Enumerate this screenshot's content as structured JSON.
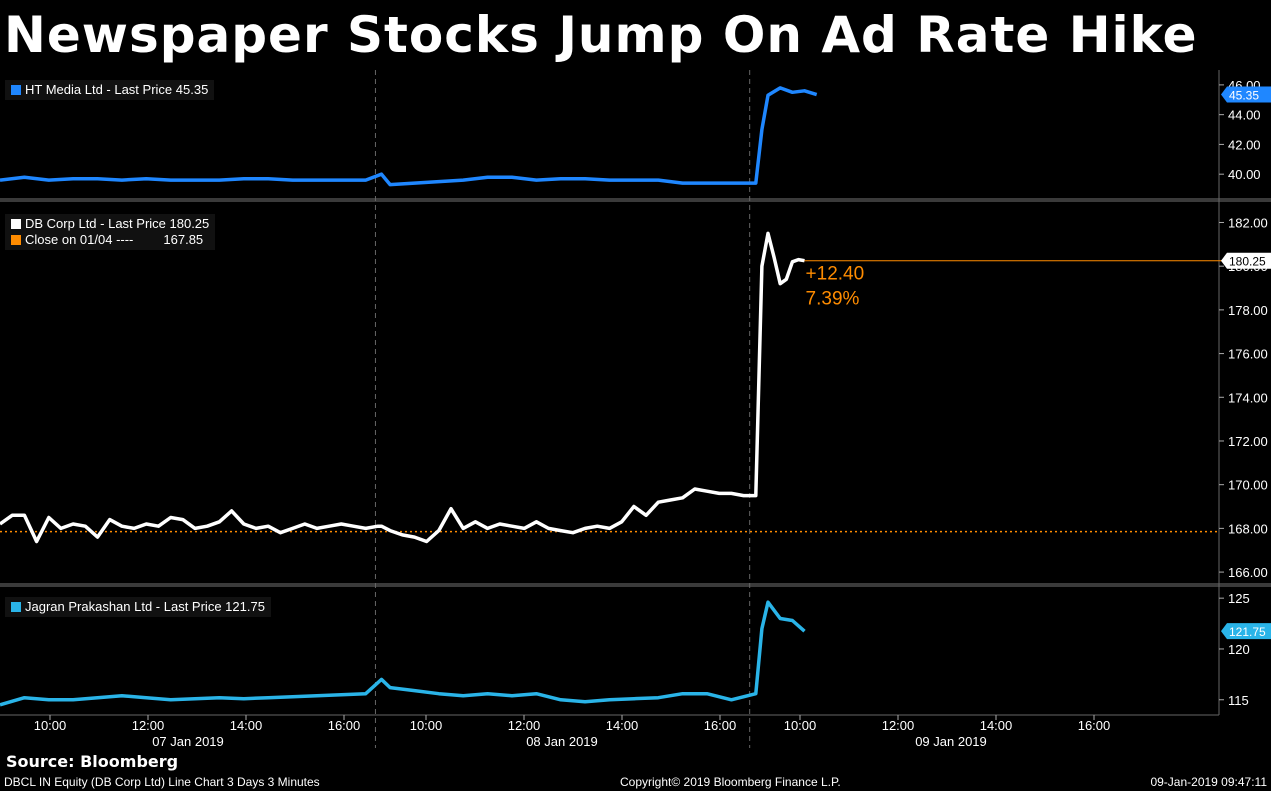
{
  "title": "Newspaper Stocks Jump On Ad Rate Hike",
  "source": "Source: Bloomberg",
  "footer": {
    "left": "DBCL IN Equity (DB Corp Ltd) Line Chart 3 Days 3 Minutes",
    "center": "Copyright© 2019 Bloomberg Finance L.P.",
    "right": "09-Jan-2019 09:47:11"
  },
  "colors": {
    "ht": "#1f87ff",
    "db": "#ffffff",
    "jagran": "#2ab4e8",
    "close": "#ff8c00",
    "grid": "#555555"
  },
  "chart_data": [
    {
      "type": "line",
      "name": "HT Media Ltd - Last Price",
      "legend": "HT Media Ltd - Last Price 45.35",
      "last_price": "45.35",
      "y_ticks": [
        "40.00",
        "42.00",
        "44.00",
        "46.00"
      ],
      "ylim": [
        38.4,
        47.0
      ],
      "x": [
        0,
        2,
        4,
        6,
        8,
        10,
        12,
        14,
        16,
        18,
        20,
        22,
        24,
        26,
        28,
        30,
        31.3,
        32,
        34,
        36,
        38,
        40,
        42,
        44,
        46,
        48,
        50,
        52,
        54,
        56,
        58,
        60,
        62,
        62.5,
        63,
        64,
        65,
        66,
        67
      ],
      "values": [
        39.6,
        39.8,
        39.6,
        39.7,
        39.7,
        39.6,
        39.7,
        39.6,
        39.6,
        39.6,
        39.7,
        39.7,
        39.6,
        39.6,
        39.6,
        39.6,
        40.0,
        39.3,
        39.4,
        39.5,
        39.6,
        39.8,
        39.8,
        39.6,
        39.7,
        39.7,
        39.6,
        39.6,
        39.6,
        39.4,
        39.4,
        39.4,
        39.4,
        43.0,
        45.3,
        45.8,
        45.5,
        45.6,
        45.35
      ]
    },
    {
      "type": "line",
      "name": "DB Corp Ltd - Last Price",
      "legend": "DB Corp Ltd - Last Price 180.25",
      "last_price": "180.25",
      "close_legend": "Close on 01/04 ----",
      "close_value": 167.85,
      "close_label": "167.85",
      "change": "+12.40",
      "change_pct": "7.39%",
      "y_ticks": [
        "166.00",
        "168.00",
        "170.00",
        "172.00",
        "174.00",
        "176.00",
        "178.00",
        "180.00",
        "182.00"
      ],
      "ylim": [
        165.5,
        182.8
      ],
      "x": [
        0,
        1,
        2,
        3,
        4,
        5,
        6,
        7,
        8,
        9,
        10,
        11,
        12,
        13,
        14,
        15,
        16,
        17,
        18,
        19,
        20,
        21,
        22,
        23,
        24,
        25,
        26,
        27,
        28,
        29,
        30,
        31,
        31.3,
        32,
        33,
        34,
        35,
        36,
        37,
        38,
        39,
        40,
        41,
        42,
        43,
        44,
        45,
        46,
        47,
        48,
        49,
        50,
        51,
        52,
        53,
        54,
        55,
        56,
        57,
        58,
        59,
        60,
        61,
        62,
        62.5,
        63,
        63.5,
        64,
        64.5,
        65,
        65.5,
        66
      ],
      "values": [
        168.2,
        168.6,
        168.6,
        167.4,
        168.5,
        168.0,
        168.2,
        168.1,
        167.6,
        168.4,
        168.1,
        168.0,
        168.2,
        168.1,
        168.5,
        168.4,
        168.0,
        168.1,
        168.3,
        168.8,
        168.2,
        168.0,
        168.1,
        167.8,
        168.0,
        168.2,
        168.0,
        168.1,
        168.2,
        168.1,
        168.0,
        168.1,
        168.1,
        167.9,
        167.7,
        167.6,
        167.4,
        167.9,
        168.9,
        168.0,
        168.3,
        168.0,
        168.2,
        168.1,
        168.0,
        168.3,
        168.0,
        167.9,
        167.8,
        168.0,
        168.1,
        168.0,
        168.3,
        169.0,
        168.6,
        169.2,
        169.3,
        169.4,
        169.8,
        169.7,
        169.6,
        169.6,
        169.5,
        169.5,
        180.0,
        181.5,
        180.4,
        179.2,
        179.4,
        180.2,
        180.3,
        180.25
      ]
    },
    {
      "type": "line",
      "name": "Jagran Prakashan Ltd - Last Price",
      "legend": "Jagran Prakashan Ltd - Last Price 121.75",
      "last_price": "121.75",
      "y_ticks": [
        "115",
        "120",
        "125"
      ],
      "ylim": [
        113.5,
        126.0
      ],
      "x": [
        0,
        2,
        4,
        6,
        8,
        10,
        12,
        14,
        16,
        18,
        20,
        22,
        24,
        26,
        28,
        30,
        31.3,
        32,
        34,
        36,
        38,
        40,
        42,
        44,
        46,
        48,
        50,
        52,
        54,
        56,
        58,
        60,
        62,
        62.5,
        63,
        64,
        65,
        66
      ],
      "values": [
        114.5,
        115.2,
        115.0,
        115.0,
        115.2,
        115.4,
        115.2,
        115.0,
        115.1,
        115.2,
        115.1,
        115.2,
        115.3,
        115.4,
        115.5,
        115.6,
        117.0,
        116.2,
        115.9,
        115.6,
        115.4,
        115.6,
        115.4,
        115.6,
        115.0,
        114.8,
        115.0,
        115.1,
        115.2,
        115.6,
        115.6,
        115.0,
        115.6,
        122.0,
        124.6,
        123.0,
        122.8,
        121.75
      ]
    }
  ],
  "x_axis": {
    "time_ticks": [
      "10:00",
      "12:00",
      "14:00",
      "16:00",
      "10:00",
      "12:00",
      "14:00",
      "16:00",
      "10:00",
      "12:00",
      "14:00",
      "16:00"
    ],
    "date_labels": [
      "07 Jan 2019",
      "08 Jan 2019",
      "09 Jan 2019"
    ]
  }
}
